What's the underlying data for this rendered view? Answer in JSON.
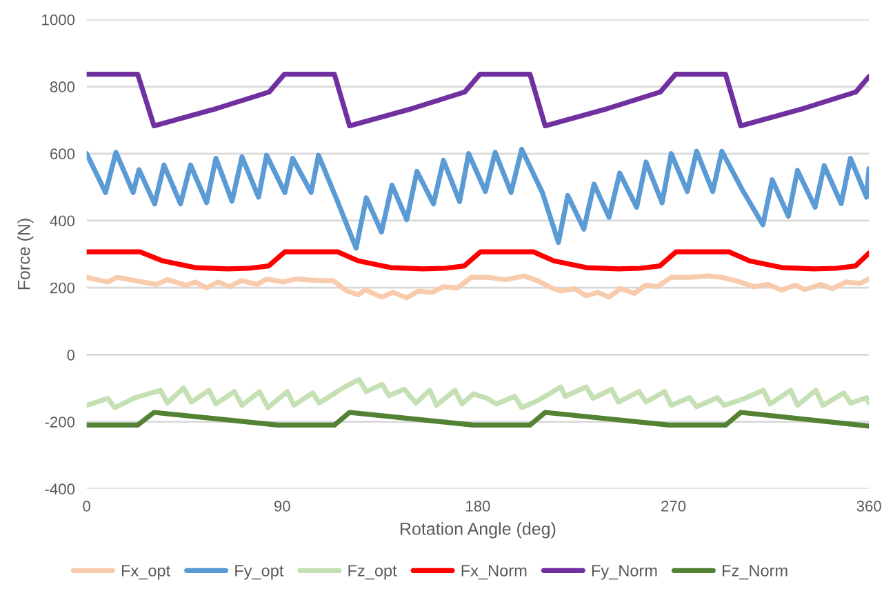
{
  "chart_data": {
    "type": "line",
    "xlabel": "Rotation Angle (deg)",
    "ylabel": "Force (N)",
    "xlim": [
      0,
      360
    ],
    "xticks": [
      0,
      90,
      180,
      270,
      360
    ],
    "ylim": [
      -400,
      1000
    ],
    "yticks": [
      -400,
      -200,
      0,
      200,
      400,
      600,
      800,
      1000
    ],
    "grid": "y",
    "legend": "bottom",
    "series": [
      {
        "name": "Fx_opt",
        "color": "#f8cbad",
        "x": [
          0,
          9.7,
          14,
          22.4,
          32,
          37.2,
          45.7,
          50,
          55.2,
          60.5,
          65.8,
          71.1,
          78.5,
          82.8,
          90.2,
          96.5,
          107,
          113.4,
          119.8,
          125,
          128.2,
          135.7,
          141,
          147.3,
          152.6,
          159,
          164.2,
          170.6,
          177,
          184.3,
          192.8,
          201.3,
          207.6,
          214,
          218.2,
          224.6,
          229.9,
          235.2,
          240.4,
          245.7,
          252,
          257.4,
          262.6,
          269,
          277.4,
          285.9,
          292.3,
          300.7,
          307.1,
          313.4,
          319.8,
          326.1,
          330.4,
          337.8,
          343.1,
          349.4,
          355.8,
          360
        ],
        "values": [
          231,
          217,
          231,
          221,
          210,
          224,
          207,
          217,
          199,
          217,
          203,
          221,
          210,
          226,
          217,
          226,
          221,
          221,
          190,
          179,
          194,
          172,
          186,
          170,
          190,
          186,
          203,
          199,
          231,
          231,
          224,
          235,
          221,
          199,
          190,
          197,
          176,
          186,
          172,
          197,
          183,
          208,
          203,
          231,
          231,
          235,
          231,
          217,
          203,
          210,
          193,
          208,
          194,
          210,
          197,
          217,
          213,
          226
        ]
      },
      {
        "name": "Fy_opt",
        "color": "#5b9bd5",
        "x": [
          0,
          8.7,
          13.5,
          21.4,
          24.1,
          31.3,
          35.6,
          43.2,
          47.8,
          55.2,
          59.5,
          66.9,
          71.5,
          79.1,
          82.8,
          91.2,
          94.8,
          103.3,
          106.7,
          115.5,
          124,
          128.7,
          135.7,
          140.5,
          147.3,
          152,
          159.6,
          164.2,
          171.6,
          175.8,
          183.5,
          188,
          195.3,
          200.2,
          209.7,
          217.1,
          221.4,
          228.8,
          233.5,
          240.4,
          245.3,
          253.1,
          257.4,
          264.8,
          269,
          276.4,
          280.7,
          288.1,
          292.3,
          301.8,
          311.2,
          315.5,
          322.9,
          327.1,
          335.2,
          339.4,
          347.2,
          351.5,
          358.9,
          360
        ],
        "values": [
          600,
          484,
          604,
          484,
          552,
          450,
          566,
          450,
          566,
          454,
          586,
          458,
          590,
          470,
          595,
          484,
          586,
          484,
          595,
          457,
          318,
          468,
          366,
          506,
          403,
          547,
          450,
          580,
          457,
          600,
          487,
          604,
          484,
          613,
          484,
          335,
          475,
          375,
          509,
          410,
          542,
          440,
          575,
          453,
          600,
          487,
          607,
          487,
          607,
          491,
          388,
          522,
          413,
          550,
          440,
          564,
          451,
          586,
          470,
          555
        ]
      },
      {
        "name": "Fz_opt",
        "color": "#c5e0b4",
        "x": [
          0,
          9.7,
          12.9,
          22.4,
          34,
          37.2,
          44.6,
          48.2,
          56.3,
          59.5,
          68,
          71.5,
          79.6,
          83.4,
          92.3,
          95.4,
          104,
          107,
          118,
          121.2,
          125.4,
          128.7,
          136,
          139.1,
          146.2,
          151.5,
          157.9,
          161,
          169.5,
          172.7,
          178,
          184.3,
          188.5,
          197,
          200.2,
          207.6,
          218.2,
          220.2,
          229.9,
          233.1,
          241.6,
          244.7,
          254.2,
          257.4,
          265.9,
          269,
          277.4,
          280.7,
          290.2,
          293.4,
          302.9,
          311.4,
          314.5,
          324,
          327.1,
          335.6,
          338.8,
          348.4,
          351.6,
          359,
          360
        ],
        "values": [
          -151,
          -130,
          -158,
          -128,
          -106,
          -144,
          -99,
          -141,
          -106,
          -147,
          -110,
          -151,
          -110,
          -158,
          -110,
          -151,
          -114,
          -144,
          -99,
          -88,
          -74,
          -110,
          -88,
          -122,
          -103,
          -144,
          -106,
          -151,
          -106,
          -147,
          -117,
          -130,
          -147,
          -124,
          -158,
          -137,
          -96,
          -124,
          -96,
          -130,
          -103,
          -141,
          -110,
          -141,
          -110,
          -151,
          -128,
          -155,
          -128,
          -151,
          -130,
          -106,
          -147,
          -106,
          -151,
          -106,
          -151,
          -114,
          -144,
          -128,
          -144
        ]
      },
      {
        "name": "Fx_Norm",
        "color": "#ff0000",
        "x": [
          0,
          24.5,
          35,
          50,
          64.7,
          75,
          83.8,
          91.2,
          115.5,
          125,
          140,
          154.7,
          165,
          173.8,
          181.2,
          205.5,
          215,
          230,
          244.7,
          255,
          263.8,
          271.2,
          295.5,
          305,
          320,
          334.7,
          345,
          353.8,
          360
        ],
        "values": [
          307,
          307,
          280,
          260,
          256,
          258,
          265,
          307,
          307,
          280,
          260,
          256,
          258,
          265,
          307,
          307,
          280,
          260,
          256,
          258,
          265,
          307,
          307,
          280,
          260,
          256,
          258,
          265,
          303
        ]
      },
      {
        "name": "Fy_Norm",
        "color": "#7030a0",
        "x": [
          0,
          23.5,
          31,
          60,
          84,
          91,
          114,
          121,
          150,
          174,
          181,
          204,
          211,
          240,
          264,
          271,
          294,
          301,
          330,
          354,
          360
        ],
        "values": [
          837,
          837,
          683,
          735,
          784,
          837,
          837,
          683,
          735,
          784,
          837,
          837,
          683,
          735,
          784,
          837,
          837,
          683,
          735,
          784,
          830
        ]
      },
      {
        "name": "Fz_Norm",
        "color": "#548235",
        "x": [
          0,
          23.5,
          31,
          88,
          114,
          121,
          178,
          204,
          211,
          268,
          294,
          301,
          360
        ],
        "values": [
          -210,
          -210,
          -172,
          -210,
          -210,
          -172,
          -210,
          -210,
          -172,
          -210,
          -210,
          -172,
          -213
        ]
      }
    ]
  }
}
